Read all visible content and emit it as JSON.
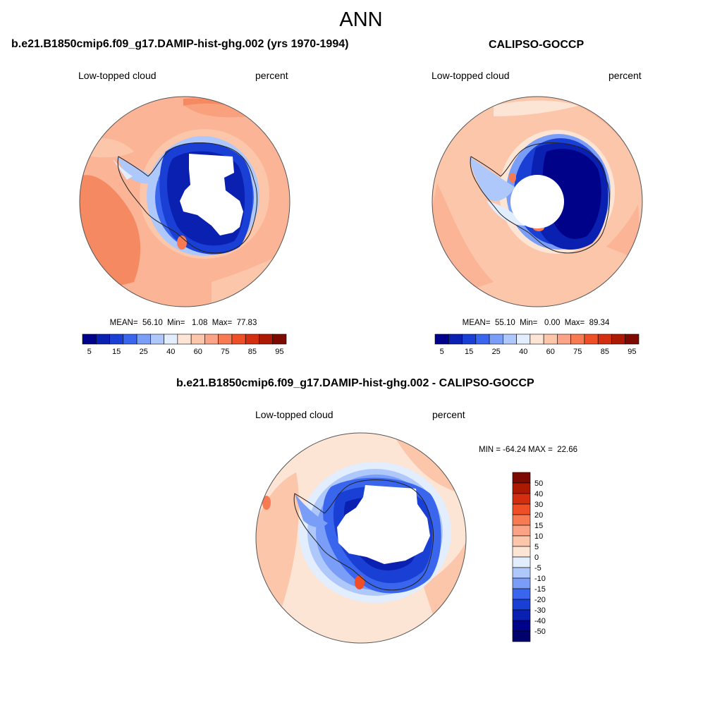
{
  "title": "ANN",
  "panels": [
    {
      "title": "b.e21.B1850cmip6.f09_g17.DAMIP-hist-ghg.002 (yrs 1970-1994)",
      "left_label": "Low-topped cloud",
      "right_label": "percent",
      "stats": "MEAN=  56.10  Min=   1.08  Max=  77.83"
    },
    {
      "title": "CALIPSO-GOCCP",
      "left_label": "Low-topped cloud",
      "right_label": "percent",
      "stats": "MEAN=  55.10  Min=   0.00  Max=  89.34"
    },
    {
      "title": "b.e21.B1850cmip6.f09_g17.DAMIP-hist-ghg.002 - CALIPSO-GOCCP",
      "left_label": "Low-topped cloud",
      "right_label": "percent",
      "stats": "MIN = -64.24 MAX =  22.66"
    }
  ],
  "colorbar_abs": {
    "labels": [
      "5",
      "15",
      "25",
      "40",
      "60",
      "75",
      "85",
      "95"
    ],
    "colors": [
      "#00028a",
      "#0a20b0",
      "#1a3fd4",
      "#3a66ee",
      "#7a9ef8",
      "#aec8fb",
      "#e2edfd",
      "#fde5d6",
      "#fcc6aa",
      "#fba386",
      "#f77a52",
      "#ef4f26",
      "#d42e10",
      "#ad1a04",
      "#7d0a00"
    ]
  },
  "colorbar_diff": {
    "labels": [
      "50",
      "40",
      "30",
      "20",
      "15",
      "10",
      "5",
      "0",
      "-5",
      "-10",
      "-15",
      "-20",
      "-30",
      "-40",
      "-50"
    ],
    "colors": [
      "#7d0a00",
      "#ad1a04",
      "#d42e10",
      "#ef4f26",
      "#f77a52",
      "#fba386",
      "#fcc6aa",
      "#fde5d6",
      "#e2edfd",
      "#aec8fb",
      "#7a9ef8",
      "#3a66ee",
      "#1a3fd4",
      "#0a20b0",
      "#00028a",
      "#00016a"
    ]
  }
}
